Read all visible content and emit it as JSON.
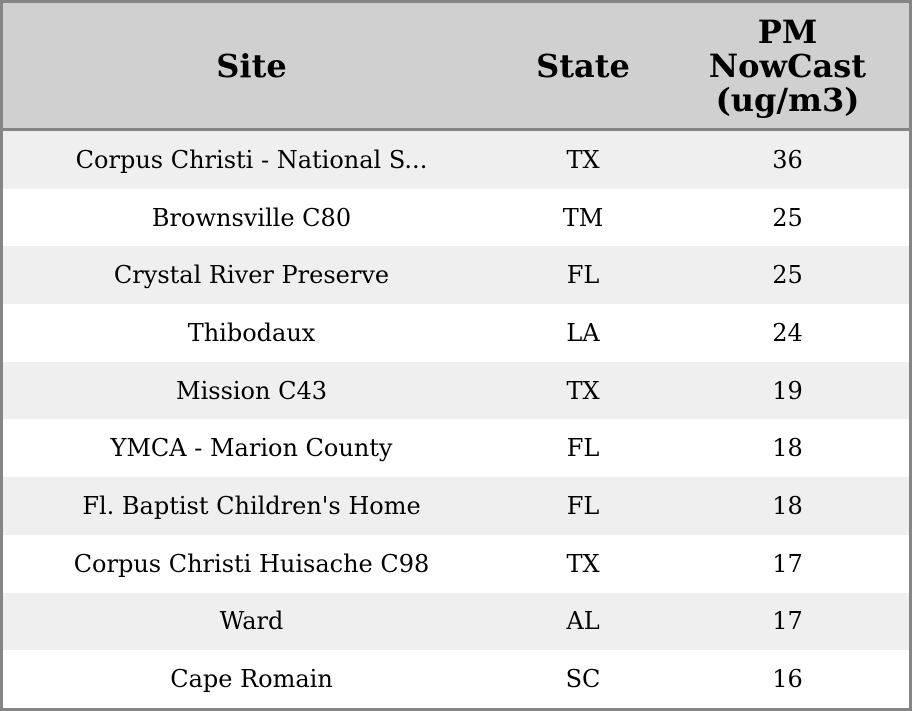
{
  "table": {
    "header": [
      "Site",
      "State",
      "PM NowCast (ug/m3)"
    ],
    "rows": [
      [
        "Corpus Christi - National S...",
        "TX",
        36
      ],
      [
        "Brownsville C80",
        "TM",
        25
      ],
      [
        "Crystal River Preserve",
        "FL",
        25
      ],
      [
        "Thibodaux",
        "LA",
        24
      ],
      [
        "Mission C43",
        "TX",
        19
      ],
      [
        "YMCA - Marion County",
        "FL",
        18
      ],
      [
        "Fl. Baptist Children's Home",
        "FL",
        18
      ],
      [
        "Corpus Christi Huisache C98",
        "TX",
        17
      ],
      [
        "Ward",
        "AL",
        17
      ],
      [
        "Cape Romain",
        "SC",
        16
      ]
    ]
  }
}
